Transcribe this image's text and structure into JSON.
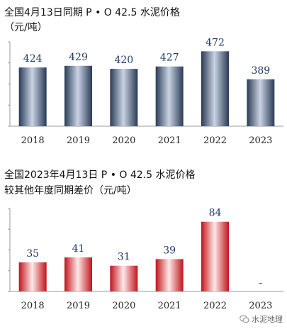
{
  "chart_data": [
    {
      "type": "bar",
      "title": "全国4月13日同期 P • O 42.5 水泥价格",
      "unit": "（元/吨）",
      "categories": [
        "2018",
        "2019",
        "2020",
        "2021",
        "2022",
        "2023"
      ],
      "values": [
        424,
        429,
        420,
        427,
        472,
        389
      ],
      "data_labels": [
        "424",
        "429",
        "420",
        "427",
        "472",
        "389"
      ],
      "ylim": [
        250,
        500
      ],
      "grid": false,
      "colors": {
        "bar_dark": "#2a3b56",
        "bar_light": "#c9d3e3",
        "label": "#1f3864"
      }
    },
    {
      "type": "bar",
      "title": "全国2023年4月13日 P • O 42.5 水泥价格",
      "unit": "较其他年度同期差价（元/吨）",
      "categories": [
        "2018",
        "2019",
        "2020",
        "2021",
        "2022",
        "2023"
      ],
      "values": [
        35,
        41,
        31,
        39,
        84,
        0
      ],
      "data_labels": [
        "35",
        "41",
        "31",
        "39",
        "84",
        "-"
      ],
      "ylim": [
        0,
        100
      ],
      "grid": false,
      "colors": {
        "bar_dark": "#c0141c",
        "bar_light": "#ffe8e8",
        "label": "#1f3864"
      }
    }
  ],
  "watermark": {
    "text": "水泥地理",
    "icon": "wechat-logo-icon"
  }
}
